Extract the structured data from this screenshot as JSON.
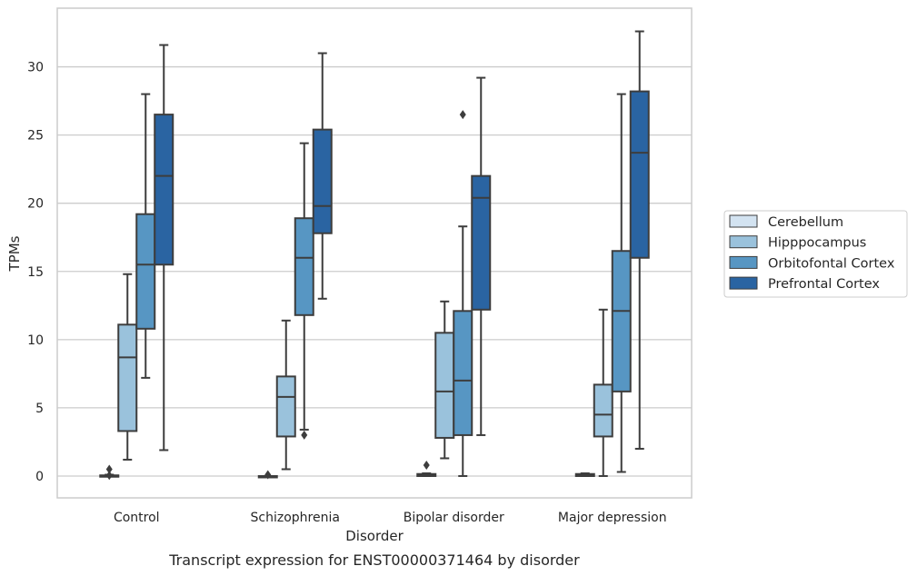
{
  "caption": "Transcript expression for ENST00000371464 by disorder",
  "chart_data": {
    "type": "box",
    "xlabel": "Disorder",
    "ylabel": "TPMs",
    "ylim": [
      -1.6,
      34.3
    ],
    "yticks": [
      0,
      5,
      10,
      15,
      20,
      25,
      30
    ],
    "grid": "horizontal",
    "legend_position": "right",
    "categories": [
      "Control",
      "Schizophrenia",
      "Bipolar disorder",
      "Major depression"
    ],
    "series": [
      {
        "name": "Cerebellum",
        "color": "#d3e3f1",
        "boxes": [
          {
            "whislo": 0,
            "q1": 0,
            "med": 0,
            "q3": 0.05,
            "whishi": 0.1,
            "fliers": [
              0.05,
              0.5
            ]
          },
          {
            "whislo": 0,
            "q1": 0,
            "med": 0,
            "q3": 0,
            "whishi": 0,
            "fliers": [
              0.1
            ]
          },
          {
            "whislo": 0,
            "q1": 0,
            "med": 0.05,
            "q3": 0.15,
            "whishi": 0.2,
            "fliers": [
              0.8
            ]
          },
          {
            "whislo": 0,
            "q1": 0,
            "med": 0.05,
            "q3": 0.15,
            "whishi": 0.2,
            "fliers": []
          }
        ]
      },
      {
        "name": "Hipppocampus",
        "color": "#9ac2dc",
        "boxes": [
          {
            "whislo": 1.2,
            "q1": 3.3,
            "med": 8.7,
            "q3": 11.1,
            "whishi": 14.8,
            "fliers": []
          },
          {
            "whislo": 0.5,
            "q1": 2.9,
            "med": 5.8,
            "q3": 7.3,
            "whishi": 11.4,
            "fliers": []
          },
          {
            "whislo": 1.3,
            "q1": 2.8,
            "med": 6.2,
            "q3": 10.5,
            "whishi": 12.8,
            "fliers": []
          },
          {
            "whislo": 0,
            "q1": 2.9,
            "med": 4.5,
            "q3": 6.7,
            "whishi": 12.2,
            "fliers": []
          }
        ]
      },
      {
        "name": "Orbitofontal Cortex",
        "color": "#5796c3",
        "boxes": [
          {
            "whislo": 7.2,
            "q1": 10.8,
            "med": 15.5,
            "q3": 19.2,
            "whishi": 28.0,
            "fliers": []
          },
          {
            "whislo": 3.4,
            "q1": 11.8,
            "med": 16.0,
            "q3": 18.9,
            "whishi": 24.4,
            "fliers": [
              3.0
            ]
          },
          {
            "whislo": 0,
            "q1": 3.0,
            "med": 7.0,
            "q3": 12.1,
            "whishi": 18.3,
            "fliers": [
              26.5
            ]
          },
          {
            "whislo": 0.3,
            "q1": 6.2,
            "med": 12.1,
            "q3": 16.5,
            "whishi": 28.0,
            "fliers": []
          }
        ]
      },
      {
        "name": "Prefrontal Cortex",
        "color": "#2a64a2",
        "boxes": [
          {
            "whislo": 1.9,
            "q1": 15.5,
            "med": 22.0,
            "q3": 26.5,
            "whishi": 31.6,
            "fliers": []
          },
          {
            "whislo": 13.0,
            "q1": 17.8,
            "med": 19.8,
            "q3": 25.4,
            "whishi": 31.0,
            "fliers": []
          },
          {
            "whislo": 3.0,
            "q1": 12.2,
            "med": 20.4,
            "q3": 22.0,
            "whishi": 29.2,
            "fliers": []
          },
          {
            "whislo": 2.0,
            "q1": 16.0,
            "med": 23.7,
            "q3": 28.2,
            "whishi": 32.6,
            "fliers": []
          }
        ]
      }
    ]
  }
}
